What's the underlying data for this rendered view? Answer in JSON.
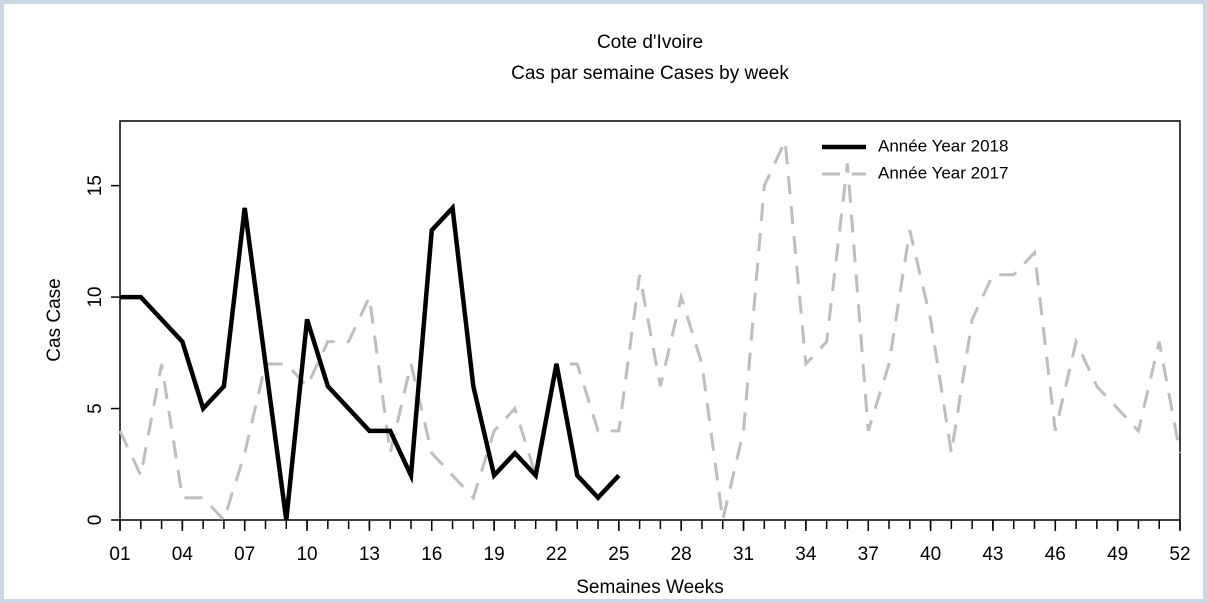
{
  "chart_data": {
    "type": "line",
    "title": "Cote d'Ivoire",
    "subtitle": "Cas par semaine Cases by week",
    "xlabel": "Semaines Weeks",
    "ylabel": "Cas Case",
    "x": [
      1,
      2,
      3,
      4,
      5,
      6,
      7,
      8,
      9,
      10,
      11,
      12,
      13,
      14,
      15,
      16,
      17,
      18,
      19,
      20,
      21,
      22,
      23,
      24,
      25,
      26,
      27,
      28,
      29,
      30,
      31,
      32,
      33,
      34,
      35,
      36,
      37,
      38,
      39,
      40,
      41,
      42,
      43,
      44,
      45,
      46,
      47,
      48,
      49,
      50,
      51,
      52
    ],
    "series": [
      {
        "name": "Année Year 2018",
        "color": "#000000",
        "dash": false,
        "values": [
          10,
          10,
          9,
          8,
          5,
          6,
          14,
          7,
          0,
          9,
          6,
          5,
          4,
          4,
          2,
          13,
          14,
          6,
          2,
          3,
          2,
          7,
          2,
          1,
          2,
          null,
          null,
          null,
          null,
          null,
          null,
          null,
          null,
          null,
          null,
          null,
          null,
          null,
          null,
          null,
          null,
          null,
          null,
          null,
          null,
          null,
          null,
          null,
          null,
          null,
          null,
          null
        ]
      },
      {
        "name": "Année Year 2017",
        "color": "#bebebe",
        "dash": true,
        "values": [
          4,
          2,
          7,
          1,
          1,
          0,
          3,
          7,
          7,
          6,
          8,
          8,
          10,
          3,
          7,
          3,
          2,
          1,
          4,
          5,
          2,
          7,
          7,
          4,
          4,
          11,
          6,
          10,
          7,
          0,
          4,
          15,
          17,
          7,
          8,
          16,
          4,
          7,
          13,
          9,
          3,
          9,
          11,
          11,
          12,
          4,
          8,
          6,
          5,
          4,
          8,
          3
        ]
      }
    ],
    "xlim": [
      1,
      52
    ],
    "ylim": [
      0,
      17.9
    ],
    "xticks": [
      {
        "value": 1,
        "label": "01"
      },
      {
        "value": 4,
        "label": "04"
      },
      {
        "value": 7,
        "label": "07"
      },
      10,
      13,
      16,
      19,
      22,
      25,
      28,
      31,
      34,
      37,
      40,
      43,
      46,
      49,
      52
    ],
    "xticks_minor": [
      1,
      2,
      3,
      4,
      5,
      6,
      7,
      8,
      9,
      10,
      11,
      12,
      13,
      14,
      15,
      16,
      17,
      18,
      19,
      20,
      21,
      22,
      23,
      24,
      25,
      26,
      27,
      28,
      29,
      30,
      31,
      32,
      33,
      34,
      35,
      36,
      37,
      38,
      39,
      40,
      41,
      42,
      43,
      44,
      45,
      46,
      47,
      48,
      49,
      50,
      51,
      52
    ],
    "yticks": [
      0,
      5,
      10,
      15
    ],
    "legend": "top-right",
    "grid": false
  }
}
